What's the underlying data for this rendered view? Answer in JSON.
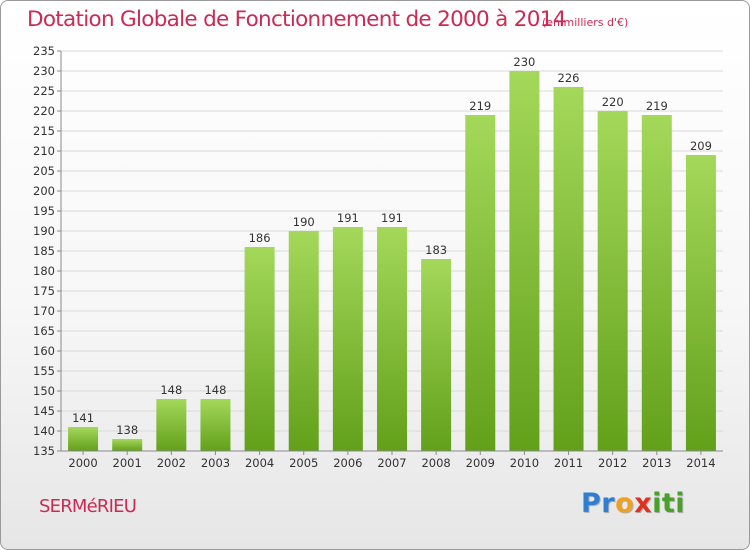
{
  "header": {
    "title": "Dotation Globale de Fonctionnement de 2000 à 2014",
    "unit": "(en milliers d'€)"
  },
  "footer": {
    "commune": "SERMéRIEU",
    "logo_letters": [
      "P",
      "r",
      "o",
      "x",
      "i",
      "t",
      "i"
    ],
    "logo_colors": [
      "#2f7fd0",
      "#2f7fd0",
      "#f0a020",
      "#e03020",
      "#4aa02a",
      "#4aa02a",
      "#4aa02a"
    ]
  },
  "colors": {
    "bar_light": "#a4d85a",
    "bar_dark": "#62a01a",
    "grid": "#d9d9d9",
    "axis": "#8a8a8a",
    "text": "#333333",
    "accent": "#cc2a55"
  },
  "chart_data": {
    "type": "bar",
    "categories": [
      "2000",
      "2001",
      "2002",
      "2003",
      "2004",
      "2005",
      "2006",
      "2007",
      "2008",
      "2009",
      "2010",
      "2011",
      "2012",
      "2013",
      "2014"
    ],
    "values": [
      141,
      138,
      148,
      148,
      186,
      190,
      191,
      191,
      183,
      219,
      230,
      226,
      220,
      219,
      209
    ],
    "title": "Dotation Globale de Fonctionnement de 2000 à 2014",
    "ylim": [
      135,
      235
    ],
    "yticks": [
      135,
      140,
      145,
      150,
      155,
      160,
      165,
      170,
      175,
      180,
      185,
      190,
      195,
      200,
      205,
      210,
      215,
      220,
      225,
      230,
      235
    ],
    "grid": true,
    "data_labels": true
  }
}
